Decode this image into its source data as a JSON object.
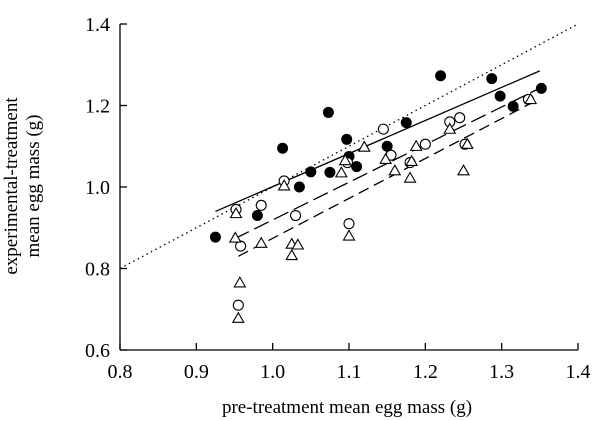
{
  "chart_data": {
    "type": "scatter",
    "xlabel": "pre-treatment mean egg mass (g)",
    "ylabel_lines": [
      "experimental-treatment",
      "mean egg mass (g)"
    ],
    "xlim": [
      0.8,
      1.4
    ],
    "ylim": [
      0.6,
      1.4
    ],
    "xticks": [
      "0.8",
      "0.9",
      "1.0",
      "1.1",
      "1.2",
      "1.3",
      "1.4"
    ],
    "yticks": [
      "0.6",
      "0.8",
      "1.0",
      "1.2",
      "1.4"
    ],
    "grid": false,
    "series": [
      {
        "marker": "filled-circle",
        "points": [
          [
            0.925,
            0.877
          ],
          [
            0.98,
            0.93
          ],
          [
            1.013,
            1.095
          ],
          [
            1.035,
            1.0
          ],
          [
            1.05,
            1.037
          ],
          [
            1.073,
            1.183
          ],
          [
            1.075,
            1.036
          ],
          [
            1.097,
            1.117
          ],
          [
            1.1,
            1.075
          ],
          [
            1.11,
            1.05
          ],
          [
            1.15,
            1.1
          ],
          [
            1.175,
            1.158
          ],
          [
            1.22,
            1.273
          ],
          [
            1.287,
            1.266
          ],
          [
            1.298,
            1.223
          ],
          [
            1.315,
            1.198
          ],
          [
            1.352,
            1.242
          ]
        ]
      },
      {
        "marker": "open-circle",
        "points": [
          [
            0.952,
            0.945
          ],
          [
            0.955,
            0.71
          ],
          [
            0.958,
            0.855
          ],
          [
            0.985,
            0.955
          ],
          [
            1.015,
            1.015
          ],
          [
            1.03,
            0.93
          ],
          [
            1.1,
            0.91
          ],
          [
            1.098,
            1.06
          ],
          [
            1.145,
            1.142
          ],
          [
            1.155,
            1.078
          ],
          [
            1.18,
            1.06
          ],
          [
            1.2,
            1.105
          ],
          [
            1.232,
            1.16
          ],
          [
            1.245,
            1.17
          ],
          [
            1.252,
            1.105
          ],
          [
            1.335,
            1.215
          ]
        ]
      },
      {
        "marker": "open-triangle",
        "points": [
          [
            0.951,
            0.875
          ],
          [
            0.952,
            0.935
          ],
          [
            0.955,
            0.678
          ],
          [
            0.957,
            0.765
          ],
          [
            0.985,
            0.862
          ],
          [
            1.015,
            1.003
          ],
          [
            1.025,
            0.86
          ],
          [
            1.025,
            0.832
          ],
          [
            1.033,
            0.858
          ],
          [
            1.09,
            1.035
          ],
          [
            1.095,
            1.065
          ],
          [
            1.1,
            0.88
          ],
          [
            1.12,
            1.098
          ],
          [
            1.148,
            1.068
          ],
          [
            1.16,
            1.04
          ],
          [
            1.18,
            1.022
          ],
          [
            1.182,
            1.063
          ],
          [
            1.188,
            1.1
          ],
          [
            1.232,
            1.142
          ],
          [
            1.25,
            1.04
          ],
          [
            1.255,
            1.105
          ],
          [
            1.338,
            1.215
          ]
        ]
      }
    ],
    "lines": [
      {
        "style": "dotted",
        "x": [
          0.8,
          1.4
        ],
        "y": [
          0.8,
          1.4
        ]
      },
      {
        "style": "solid",
        "x": [
          0.925,
          1.35
        ],
        "y": [
          0.94,
          1.285
        ]
      },
      {
        "style": "long-dash",
        "x": [
          0.95,
          1.345
        ],
        "y": [
          0.873,
          1.238
        ]
      },
      {
        "style": "dash",
        "x": [
          0.955,
          1.345
        ],
        "y": [
          0.83,
          1.212
        ]
      }
    ]
  }
}
